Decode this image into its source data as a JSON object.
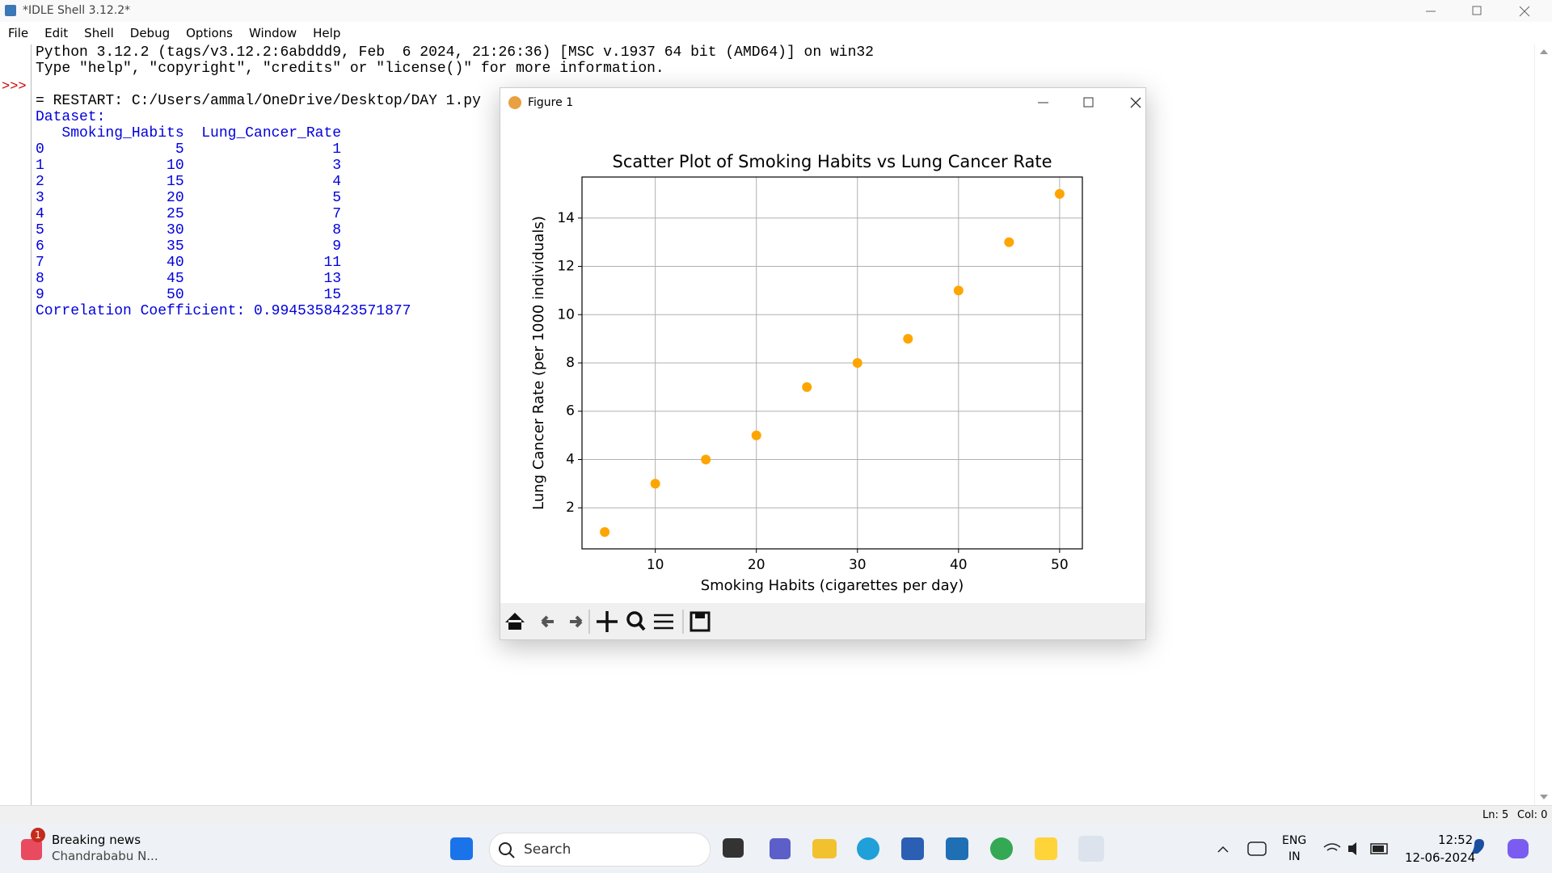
{
  "window": {
    "title": "*IDLE Shell 3.12.2*",
    "menu": [
      "File",
      "Edit",
      "Shell",
      "Debug",
      "Options",
      "Window",
      "Help"
    ]
  },
  "shell": {
    "banner": [
      "Python 3.12.2 (tags/v3.12.2:6abddd9, Feb  6 2024, 21:26:36) [MSC v.1937 64 bit (AMD64)] on win32",
      "Type \"help\", \"copyright\", \"credits\" or \"license()\" for more information."
    ],
    "prompt": ">>>",
    "restart": "= RESTART: C:/Users/ammal/OneDrive/Desktop/DAY 1.py",
    "output": [
      "Dataset:",
      "   Smoking_Habits  Lung_Cancer_Rate",
      "0               5                 1",
      "1              10                 3",
      "2              15                 4",
      "3              20                 5",
      "4              25                 7",
      "5              30                 8",
      "6              35                 9",
      "7              40                11",
      "8              45                13",
      "9              50                15",
      "Correlation Coefficient: 0.9945358423571877"
    ]
  },
  "figure": {
    "title": "Figure 1"
  },
  "chart_data": {
    "type": "scatter",
    "title": "Scatter Plot of Smoking Habits vs Lung Cancer Rate",
    "x_label": "Smoking Habits (cigarettes per day)",
    "y_label": "Lung Cancer Rate (per 1000 individuals)",
    "x": [
      5,
      10,
      15,
      20,
      25,
      30,
      35,
      40,
      45,
      50
    ],
    "values": [
      1,
      3,
      4,
      5,
      7,
      8,
      9,
      11,
      13,
      15
    ],
    "color": "#ffa500",
    "xlim": [
      2.75,
      52.25
    ],
    "xticks": [
      10,
      20,
      30,
      40,
      50
    ],
    "ylim": [
      0.3,
      15.7
    ],
    "yticks": [
      2,
      4,
      6,
      8,
      10,
      12,
      14
    ],
    "grid": true
  },
  "status": {
    "line": "Ln: 5",
    "col": "Col: 0"
  },
  "taskbar": {
    "news_badge": "1",
    "news_title": "Breaking news",
    "news_text": "Chandrababu N...",
    "search": "Search",
    "lang": "ENG",
    "region": "IN",
    "time": "12:52",
    "date": "12-06-2024"
  }
}
